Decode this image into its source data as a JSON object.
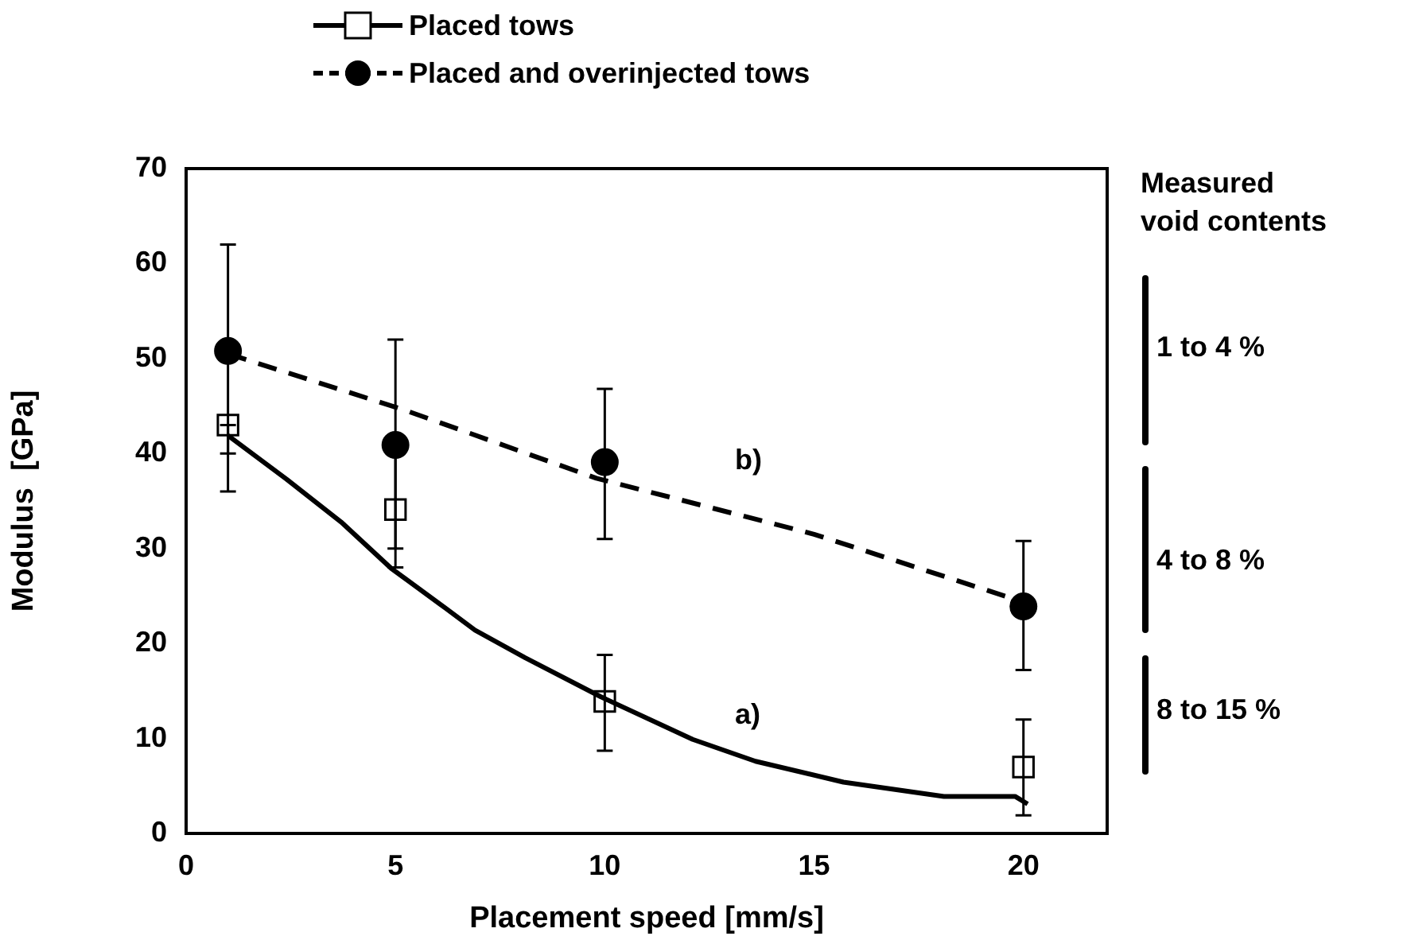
{
  "chart_data": {
    "type": "scatter",
    "xlabel": "Placement speed [mm/s]",
    "ylabel": "Modulus  [GPa]",
    "xlim": [
      0,
      22
    ],
    "xticks": [
      0,
      5,
      10,
      15,
      20
    ],
    "ylim": [
      0,
      70
    ],
    "yticks": [
      0,
      10,
      20,
      30,
      40,
      50,
      60,
      70
    ],
    "grid": false,
    "legend": "top",
    "series": [
      {
        "name": "Placed tows",
        "type": "scatter",
        "marker": "square",
        "line_style": "solid",
        "color": "#000000",
        "x": [
          1,
          5,
          10,
          20
        ],
        "values": [
          43,
          34.1,
          13.9,
          7
        ],
        "errors": [
          [
            36,
            43
          ],
          [
            28,
            40
          ],
          [
            8.7,
            18.8
          ],
          [
            1.9,
            12
          ]
        ]
      },
      {
        "name": "Placed and overinjected tows",
        "type": "scatter",
        "marker": "circle",
        "line_style": "dashed",
        "color": "#000000",
        "x": [
          1,
          5,
          10,
          20
        ],
        "values": [
          50.8,
          40.9,
          39.1,
          23.9
        ],
        "errors": [
          [
            40,
            62
          ],
          [
            30,
            52
          ],
          [
            31,
            46.8
          ],
          [
            17.2,
            30.8
          ]
        ]
      },
      {
        "type": "line",
        "marker": "none",
        "line_style": "solid",
        "color": "#000000",
        "x": [
          1,
          2.4,
          3.7,
          4.9,
          6.2,
          6.9,
          8.1,
          9.9,
          12.1,
          13.6,
          15.7,
          18.1,
          19.8,
          20.1
        ],
        "values": [
          41.9,
          37.3,
          32.8,
          27.9,
          23.7,
          21.4,
          18.5,
          14.4,
          9.9,
          7.6,
          5.4,
          3.9,
          3.9,
          3.1
        ]
      },
      {
        "type": "line",
        "marker": "none",
        "line_style": "dashed",
        "color": "#000000",
        "x": [
          1,
          5.2,
          9.8,
          15,
          19.9
        ],
        "values": [
          50.5,
          44.6,
          37.4,
          31.5,
          24.5
        ]
      }
    ],
    "annotations": [
      "a)",
      "b)",
      "Measured\nvoid contents",
      "1 to 4 %",
      "4 to 8 %",
      "8 to 15 %"
    ]
  }
}
